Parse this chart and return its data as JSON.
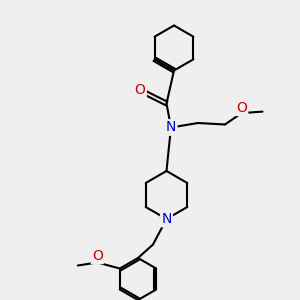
{
  "background_color": "#efefef",
  "bond_color": "#000000",
  "N_color": "#0000cc",
  "O_color": "#cc0000",
  "bond_width": 1.5,
  "font_size_atom": 9,
  "fig_size": [
    3.0,
    3.0
  ],
  "dpi": 100,
  "xlim": [
    0,
    10
  ],
  "ylim": [
    0,
    10
  ]
}
